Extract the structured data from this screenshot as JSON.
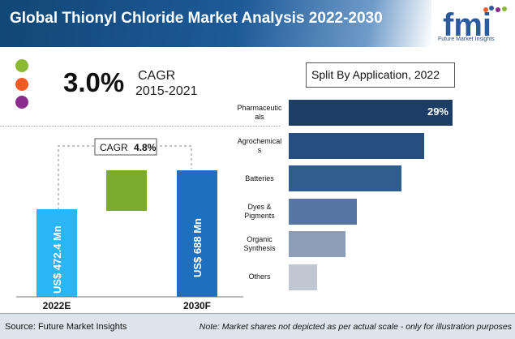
{
  "title": "Global Thionyl Chloride Market Analysis 2022-2030",
  "logo": {
    "text": "fmi",
    "caption": "Future Market Insights"
  },
  "legend_dots": [
    {
      "color": "#8ab935"
    },
    {
      "color": "#f05a24"
    },
    {
      "color": "#8a2b8e"
    }
  ],
  "cagr": {
    "value": "3.0%",
    "label": "CAGR",
    "years": "2015-2021"
  },
  "colors": {
    "title_bar": "#124776",
    "bar_2022": "#29b6f6",
    "bar_growth": "#7aaa2e",
    "bar_2030": "#1f6fbf",
    "footer_bg": "#dde4ec"
  },
  "market_chart": {
    "cagr_tag_label": "CAGR",
    "cagr_tag_value": "4.8%",
    "bars": [
      {
        "category": "2022E",
        "label": "US$ 472.4 Mn",
        "value": 472.4
      },
      {
        "category": "2030F",
        "label": "US$ 688 Mn",
        "value": 688
      }
    ]
  },
  "chart_data": {
    "type": "bar",
    "title": "Split By Application, 2022",
    "orientation": "horizontal",
    "categories": [
      "Pharmaceuticals",
      "Agrochemicals",
      "Batteries",
      "Dyes & Pigments",
      "Organic Synthesis",
      "Others"
    ],
    "category_labels": [
      [
        "Pharmaceutic",
        "als"
      ],
      [
        "Agrochemical",
        "s"
      ],
      [
        "Batteries"
      ],
      [
        "Dyes &",
        "Pigments"
      ],
      [
        "Organic",
        "Synthesis"
      ],
      [
        "Others"
      ]
    ],
    "values": [
      29,
      24,
      20,
      12,
      10,
      5
    ],
    "value_labels": [
      "29%",
      "",
      "",
      "",
      "",
      ""
    ],
    "colors": [
      "#1c3e66",
      "#254f7e",
      "#2e5d8e",
      "#5776a4",
      "#8c9db8",
      "#c0c7d3"
    ],
    "xlim": [
      0,
      29
    ]
  },
  "footer": {
    "source": "Source: Future Market Insights",
    "note": "Note: Market shares not depicted as per actual scale - only for illustration purposes"
  }
}
